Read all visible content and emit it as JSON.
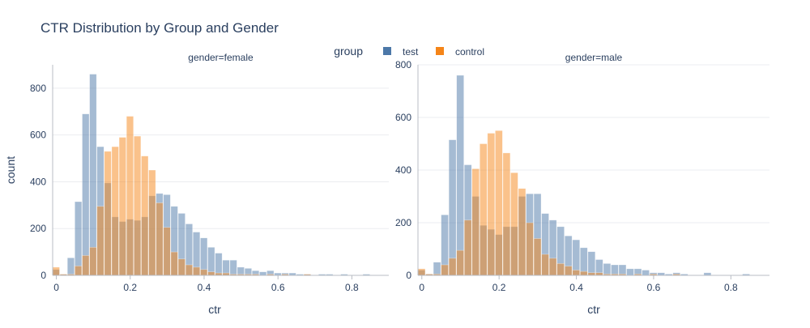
{
  "chart_data": {
    "type": "bar",
    "subtype": "overlaid-histogram",
    "title": "CTR Distribution by Group and Gender",
    "legend": {
      "title": "group",
      "placement": "top-center",
      "orientation": "horizontal",
      "items": [
        {
          "name": "test",
          "color": "#4c78a8"
        },
        {
          "name": "control",
          "color": "#f58518"
        }
      ]
    },
    "xlabel": "ctr",
    "ylabel": "count",
    "bin_width": 0.02,
    "opacity": 0.5,
    "grid": true,
    "panels": [
      {
        "label": "gender=female",
        "xlim": [
          -0.01,
          0.9
        ],
        "ylim": [
          0,
          900
        ],
        "x_ticks": [
          0,
          0.2,
          0.4,
          0.6,
          0.8
        ],
        "x_tick_labels": [
          "0",
          "0.2",
          "0.4",
          "0.6",
          "0.8"
        ],
        "y_ticks": [
          0,
          200,
          400,
          600,
          800
        ],
        "y_tick_labels": [
          "0",
          "200",
          "400",
          "600",
          "800"
        ],
        "series": [
          {
            "name": "test",
            "color": "#4c78a8",
            "x": [
              0,
              0.02,
              0.04,
              0.06,
              0.08,
              0.1,
              0.12,
              0.14,
              0.16,
              0.18,
              0.2,
              0.22,
              0.24,
              0.26,
              0.28,
              0.3,
              0.32,
              0.34,
              0.36,
              0.38,
              0.4,
              0.42,
              0.44,
              0.46,
              0.48,
              0.5,
              0.52,
              0.54,
              0.56,
              0.58,
              0.6,
              0.62,
              0.64,
              0.66,
              0.68,
              0.7,
              0.72,
              0.74,
              0.76,
              0.78,
              0.8,
              0.82,
              0.84
            ],
            "values": [
              25,
              5,
              75,
              315,
              690,
              860,
              550,
              395,
              250,
              230,
              240,
              235,
              250,
              340,
              350,
              345,
              295,
              265,
              220,
              185,
              160,
              120,
              95,
              65,
              65,
              35,
              30,
              20,
              15,
              20,
              10,
              10,
              10,
              5,
              5,
              0,
              5,
              5,
              0,
              5,
              0,
              0,
              5
            ]
          },
          {
            "name": "control",
            "color": "#f58518",
            "x": [
              0,
              0.02,
              0.04,
              0.06,
              0.08,
              0.1,
              0.12,
              0.14,
              0.16,
              0.18,
              0.2,
              0.22,
              0.24,
              0.26,
              0.28,
              0.3,
              0.32,
              0.34,
              0.36,
              0.38,
              0.4,
              0.42,
              0.44,
              0.46,
              0.48,
              0.5,
              0.52,
              0.54,
              0.56,
              0.58,
              0.6,
              0.62,
              0.64,
              0.66,
              0.68,
              0.7,
              0.72
            ],
            "values": [
              35,
              5,
              5,
              40,
              85,
              120,
              295,
              530,
              550,
              590,
              680,
              595,
              510,
              450,
              310,
              205,
              100,
              70,
              45,
              35,
              25,
              15,
              10,
              10,
              5,
              5,
              5,
              5,
              0,
              5,
              0,
              5,
              0,
              0,
              5,
              0,
              0
            ]
          }
        ]
      },
      {
        "label": "gender=male",
        "xlim": [
          -0.01,
          0.9
        ],
        "ylim": [
          0,
          800
        ],
        "x_ticks": [
          0,
          0.2,
          0.4,
          0.6,
          0.8
        ],
        "x_tick_labels": [
          "0",
          "0.2",
          "0.4",
          "0.6",
          "0.8"
        ],
        "y_ticks": [
          0,
          200,
          400,
          600,
          800
        ],
        "y_tick_labels": [
          "0",
          "200",
          "400",
          "600",
          "800"
        ],
        "series": [
          {
            "name": "test",
            "color": "#4c78a8",
            "x": [
              0,
              0.02,
              0.04,
              0.06,
              0.08,
              0.1,
              0.12,
              0.14,
              0.16,
              0.18,
              0.2,
              0.22,
              0.24,
              0.26,
              0.28,
              0.3,
              0.32,
              0.34,
              0.36,
              0.38,
              0.4,
              0.42,
              0.44,
              0.46,
              0.48,
              0.5,
              0.52,
              0.54,
              0.56,
              0.58,
              0.6,
              0.62,
              0.64,
              0.66,
              0.68,
              0.7,
              0.72,
              0.74,
              0.76,
              0.78,
              0.8,
              0.82,
              0.84
            ],
            "values": [
              20,
              5,
              50,
              230,
              515,
              760,
              420,
              300,
              190,
              175,
              155,
              185,
              185,
              300,
              310,
              310,
              235,
              210,
              185,
              150,
              135,
              105,
              90,
              60,
              45,
              40,
              40,
              25,
              25,
              20,
              10,
              10,
              5,
              10,
              5,
              0,
              0,
              10,
              0,
              0,
              0,
              0,
              5
            ]
          },
          {
            "name": "control",
            "color": "#f58518",
            "x": [
              0,
              0.02,
              0.04,
              0.06,
              0.08,
              0.1,
              0.12,
              0.14,
              0.16,
              0.18,
              0.2,
              0.22,
              0.24,
              0.26,
              0.28,
              0.3,
              0.32,
              0.34,
              0.36,
              0.38,
              0.4,
              0.42,
              0.44,
              0.46,
              0.48,
              0.5,
              0.52,
              0.54,
              0.56,
              0.58,
              0.6,
              0.62,
              0.64,
              0.66,
              0.68,
              0.7
            ],
            "values": [
              25,
              5,
              5,
              40,
              65,
              95,
              210,
              405,
              500,
              540,
              550,
              465,
              390,
              330,
              200,
              140,
              80,
              65,
              45,
              35,
              20,
              15,
              10,
              10,
              5,
              5,
              5,
              0,
              5,
              0,
              5,
              0,
              0,
              5,
              0,
              0
            ]
          }
        ]
      }
    ]
  }
}
